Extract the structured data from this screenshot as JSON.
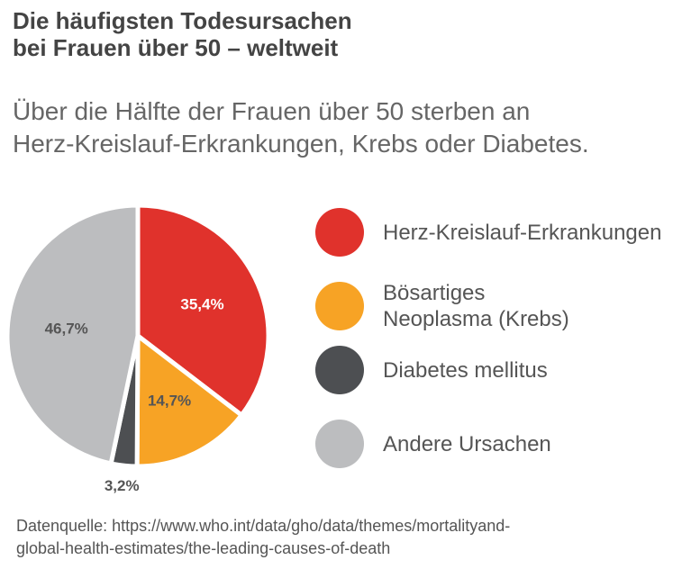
{
  "chart_data": {
    "type": "pie",
    "title": [
      "Die häufigsten Todesursachen",
      "bei Frauen über 50 – weltweit"
    ],
    "subtitle": [
      "Über die Hälfte der Frauen über 50 sterben an",
      "Herz-Kreislauf-Erkrankungen, Krebs oder Diabetes."
    ],
    "categories": [
      "Herz-Kreislauf-Erkrankungen",
      "Bösartiges\nNeoplasma (Krebs)",
      "Diabetes mellitus",
      "Andere Ursachen"
    ],
    "values": [
      35.4,
      14.7,
      3.2,
      46.7
    ],
    "value_labels": [
      "35,4%",
      "14,7%",
      "3,2%",
      "46,7%"
    ],
    "colors": [
      "#e0322c",
      "#f7a325",
      "#4d4f52",
      "#bcbdbf"
    ],
    "source": [
      "Datenquelle: https://www.who.int/data/gho/data/themes/mortalityand-",
      "global-health-estimates/the-leading-causes-of-death"
    ]
  }
}
